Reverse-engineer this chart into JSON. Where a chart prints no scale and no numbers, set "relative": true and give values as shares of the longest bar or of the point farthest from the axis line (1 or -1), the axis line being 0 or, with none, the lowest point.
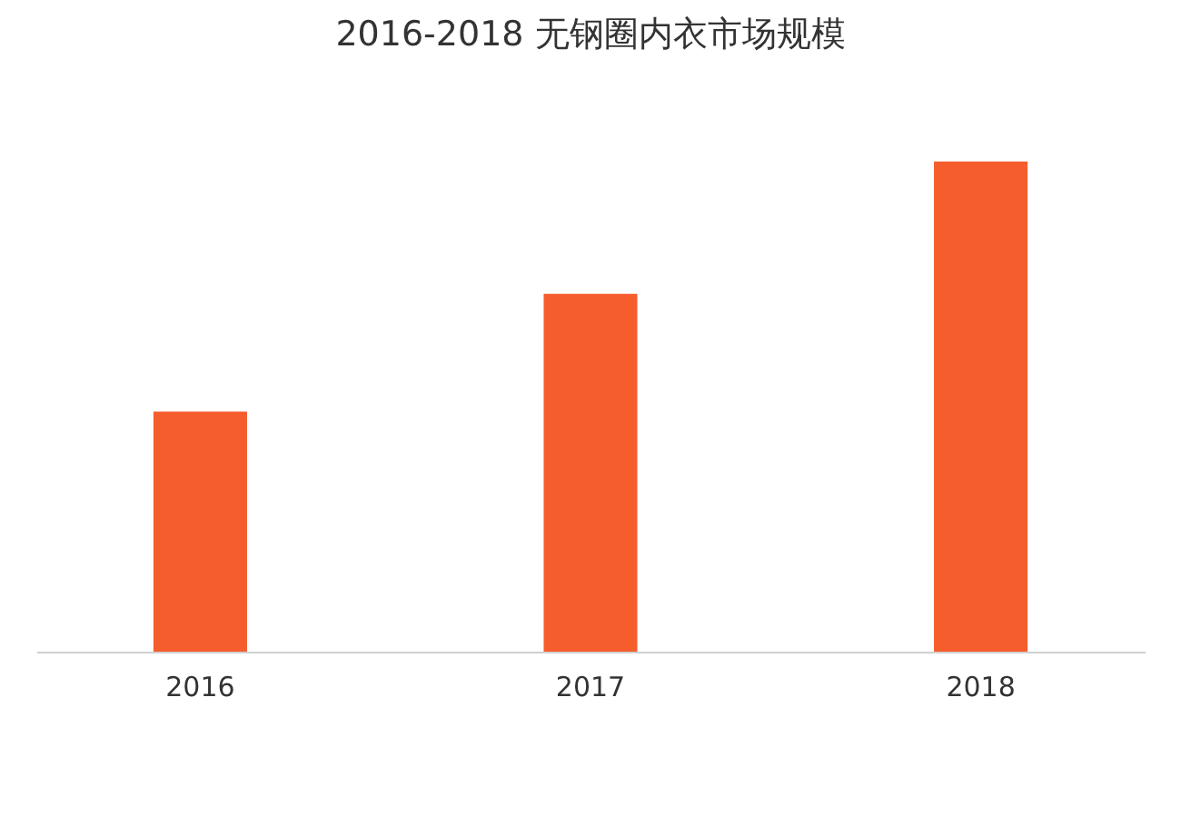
{
  "chart_data": {
    "type": "bar",
    "title": "2016-2018 无钢圈内衣市场规模",
    "categories": [
      "2016",
      "2017",
      "2018"
    ],
    "values": [
      0.49,
      0.73,
      1
    ],
    "color": "#f65d2d",
    "relative": true,
    "grid": false
  }
}
